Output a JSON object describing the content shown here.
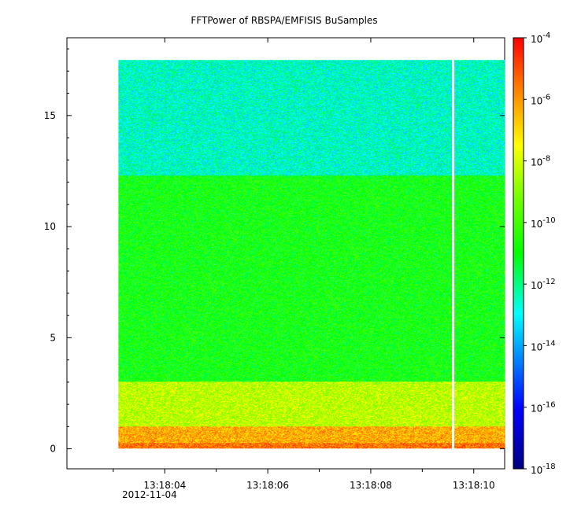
{
  "chart_data": {
    "type": "heatmap",
    "title": "FFTPower of RBSPA/EMFISIS  BuSamples",
    "xlabel": "",
    "ylabel": "",
    "x_ticks": [
      "13:18:04",
      "13:18:06",
      "13:18:08",
      "13:18:10"
    ],
    "x_date_label": "2012-11-04",
    "x_range": [
      "13:18:02.1",
      "13:18:10.6"
    ],
    "data_x_range": [
      "13:18:03.1",
      "13:18:10.6"
    ],
    "data_gap_at": "13:18:09.6",
    "y_ticks": [
      0,
      5,
      10,
      15
    ],
    "ylim": [
      -0.9,
      18.5
    ],
    "data_y_range": [
      0,
      17.5
    ],
    "colorbar": {
      "scale": "log",
      "range": [
        1e-18,
        0.0001
      ],
      "ticks": [
        {
          "value": -4,
          "base": "10",
          "exp": "-4"
        },
        {
          "value": -6,
          "base": "10",
          "exp": "-6"
        },
        {
          "value": -8,
          "base": "10",
          "exp": "-8"
        },
        {
          "value": -10,
          "base": "10",
          "exp": "-10"
        },
        {
          "value": -12,
          "base": "10",
          "exp": "-12"
        },
        {
          "value": -14,
          "base": "10",
          "exp": "-14"
        },
        {
          "value": -16,
          "base": "10",
          "exp": "-16"
        },
        {
          "value": -18,
          "base": "10",
          "exp": "-18"
        }
      ]
    },
    "bands": [
      {
        "y_from": 12.3,
        "y_to": 17.5,
        "log_power": -12.6
      },
      {
        "y_from": 3.0,
        "y_to": 12.3,
        "log_power": -10.8
      },
      {
        "y_from": 1.0,
        "y_to": 3.0,
        "log_power": -8.3
      },
      {
        "y_from": 0.0,
        "y_to": 1.0,
        "log_power": -6.3
      }
    ],
    "grid": false,
    "colors": {
      "background": "#ffffff",
      "axis": "#000000",
      "gap": "#ffffff"
    }
  }
}
